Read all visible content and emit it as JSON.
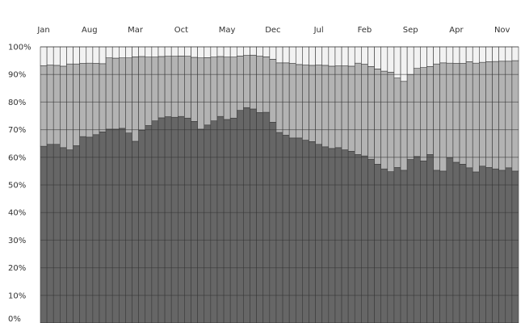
{
  "chart_data": {
    "type": "bar",
    "stacked": true,
    "x_tick_labels": [
      "Jan",
      "Aug",
      "Mar",
      "Oct",
      "May",
      "Dec",
      "Jul",
      "Feb",
      "Sep",
      "Apr",
      "Nov"
    ],
    "x_tick_positions": [
      0,
      7,
      14,
      21,
      28,
      35,
      42,
      49,
      56,
      63,
      70
    ],
    "x_axis_position": "top",
    "y_tick_labels": [
      "0%",
      "10%",
      "20%",
      "30%",
      "40%",
      "50%",
      "60%",
      "70%",
      "80%",
      "90%",
      "100%"
    ],
    "ylim": [
      0,
      100
    ],
    "grid": true,
    "colors": {
      "dark": "#666666",
      "mid": "#b3b3b3",
      "light": "#f2f2f2",
      "grid": "#333333",
      "outline": "#3a3a3a"
    },
    "series": [
      {
        "values": [
          64,
          64.7,
          64.7,
          63.5,
          62.7,
          64.2,
          67.5,
          67.3,
          68.2,
          69.2,
          70.2,
          70.2,
          70.5,
          68.8,
          65.8,
          69.8,
          71.5,
          73.2,
          74.3,
          74.7,
          74.5,
          74.8,
          74.2,
          73,
          70.2,
          71.7,
          73.2,
          74.8,
          73.7,
          74.2,
          77,
          78,
          77.5,
          76.2,
          76.3,
          72.7,
          69,
          68,
          67,
          67,
          66.2,
          65.7,
          64.7,
          63.8,
          63.2,
          63.5,
          62.7,
          62.2,
          61,
          60.5,
          59.3,
          57.5,
          55.8,
          54.8,
          56.3,
          55.3,
          59.2,
          60.3,
          58.7,
          61,
          55.3,
          55,
          59.8,
          58.2,
          57.5,
          56.2,
          54.7,
          56.8,
          56.3,
          55.8,
          55.3,
          56.2,
          55
        ]
      },
      {
        "values": [
          29.2,
          28.7,
          28.6,
          29.5,
          31.1,
          29.6,
          26.5,
          26.8,
          25.8,
          24.7,
          25.8,
          25.7,
          25.5,
          27.2,
          30.6,
          26.7,
          24.8,
          23.1,
          22.2,
          21.9,
          22.1,
          21.9,
          22.4,
          23.2,
          25.8,
          24.4,
          23.1,
          21.7,
          22.6,
          22.1,
          19.7,
          18.9,
          19.5,
          20.4,
          20.1,
          22.8,
          25.2,
          26.2,
          27,
          26.6,
          27.2,
          27.6,
          28.7,
          29.5,
          29.8,
          29.6,
          30.4,
          30.8,
          33.1,
          33.2,
          33.6,
          34.5,
          35.4,
          36,
          32.4,
          32.2,
          30.8,
          31.9,
          33.8,
          31.9,
          38.5,
          39.2,
          34.3,
          35.8,
          36.5,
          38.4,
          39.4,
          37.6,
          38.3,
          38.9,
          39.5,
          38.6,
          40
        ]
      },
      {
        "values": [
          6.8,
          6.6,
          6.7,
          7,
          6.2,
          6.2,
          6,
          5.9,
          6,
          6.1,
          4,
          4.1,
          4,
          4,
          3.6,
          3.5,
          3.7,
          3.7,
          3.5,
          3.4,
          3.4,
          3.3,
          3.4,
          3.8,
          4,
          3.9,
          3.7,
          3.5,
          3.7,
          3.7,
          3.3,
          3.1,
          3,
          3.4,
          3.6,
          4.5,
          5.8,
          5.8,
          6,
          6.4,
          6.6,
          6.7,
          6.6,
          6.7,
          7,
          6.9,
          6.9,
          7,
          5.9,
          6.3,
          7.1,
          8,
          8.8,
          9.2,
          11.3,
          12.5,
          10,
          7.8,
          7.5,
          7.1,
          6.2,
          5.8,
          5.9,
          6,
          6,
          5.4,
          5.9,
          5.6,
          5.4,
          5.3,
          5.2,
          5.2,
          5
        ]
      }
    ]
  }
}
